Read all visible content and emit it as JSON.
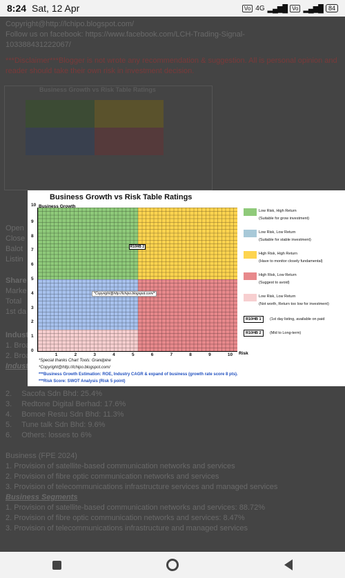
{
  "status_bar": {
    "time": "8:24",
    "date": "Sat, 12 Apr",
    "network": "4G",
    "battery": "84"
  },
  "background_page": {
    "lines": [
      "Copyright@http://lchipo.blogspot.com/",
      "Follow us on facebook: https://www.facebook.com/LCH-Trading-Signal-",
      "103388431222067/"
    ],
    "disclaimer": "***Disclaimer***Blogger is not wrote any recommendation & suggestion. All is personal opinion and reader should take their own risk in investment decision.",
    "thumb_title": "Business Growth vs Risk Table Ratings",
    "block_a": [
      "Open",
      "Close",
      "Balot",
      "Listin"
    ],
    "block_b": [
      "Share",
      "Marke",
      "Total",
      "1st da"
    ],
    "industry": [
      "Industr",
      "1. Broa",
      "2. Broa",
      "Industr"
    ],
    "list": [
      {
        "num": "2.",
        "text": "Sacofa Sdn Bhd: 25.4%"
      },
      {
        "num": "3.",
        "text": "Redtone Digital Berhad: 17.6%"
      },
      {
        "num": "4.",
        "text": "Bomoe Restu Sdn Bhd: 11.3%"
      },
      {
        "num": "5.",
        "text": "Tune talk Sdn Bhd: 9.6%"
      },
      {
        "num": "6.",
        "text": "Others: losses to 6%"
      }
    ],
    "business_title": "Business (FPE 2024)",
    "business_lines": [
      "1. Provision of satellite-based communication networks and services",
      "2. Provision of fibre optic communication networks and services",
      "3. Provision of telecommunications infrastructure services and managed services"
    ],
    "segments_title": "Business Segments",
    "segment_lines": [
      "1. Provision of satellite-based communication networks and services: 88.72%",
      "2. Provision of fibre optic communication networks and services: 8.47%",
      "3. Provision of telecommunications infrastructure and managed services"
    ]
  },
  "chart": {
    "title": "Business Growth vs Risk Table Ratings",
    "ylabel": "Business Growth",
    "xlabel": "Risk",
    "y_ticks": [
      "10",
      "9",
      "8",
      "7",
      "6",
      "5",
      "4",
      "3",
      "2",
      "1",
      "0"
    ],
    "x_ticks": [
      "1",
      "2",
      "3",
      "4",
      "5",
      "6",
      "7",
      "8",
      "9",
      "10"
    ],
    "colors": {
      "green": "#8fca7a",
      "yellow": "#fdd44f",
      "blue": "#a8c2ee",
      "red": "#e8898c",
      "pink": "#f7cfd0"
    },
    "markers": [
      {
        "label": "R10HB 2",
        "risk": 5,
        "growth": 7
      }
    ],
    "copyright_label": "*Copyright@http://lchipo.blogspot.com/*",
    "legend": [
      {
        "color": "#8fca7a",
        "title": "Low Risk, High Return",
        "desc": "(Suitable for grow investment)"
      },
      {
        "color": "#a8c9d8",
        "title": "Low Risk, Low Return",
        "desc": "(Suitable for stable investment)"
      },
      {
        "color": "#fdd44f",
        "title": "High Risk, High Return",
        "desc": "(Have to monitor closely  fundamental)"
      },
      {
        "color": "#e8898c",
        "title": "High Risk, Low Return",
        "desc": "(Suggest to avoid)"
      },
      {
        "color": "#f7cfd0",
        "title": "Low Risk, Low Return",
        "desc": "(Not worth, Return too low for investment)"
      }
    ],
    "badges": [
      {
        "label": "R10HB 1",
        "desc": "(1st day listing, available on paid"
      },
      {
        "label": "R10HB 2",
        "desc": "(Mid to Long-term)"
      }
    ],
    "notes": [
      "*Special thanks Chart Tools: Grandpine",
      "*Copyright@http://lchipo.blogspot.com/",
      "***Business Growth Estimation: ROE, Industry CAGR & expand of business (growth rate score 8 pts).",
      "***Risk Score: SWOT Analysis (Risk 5 point)"
    ]
  }
}
